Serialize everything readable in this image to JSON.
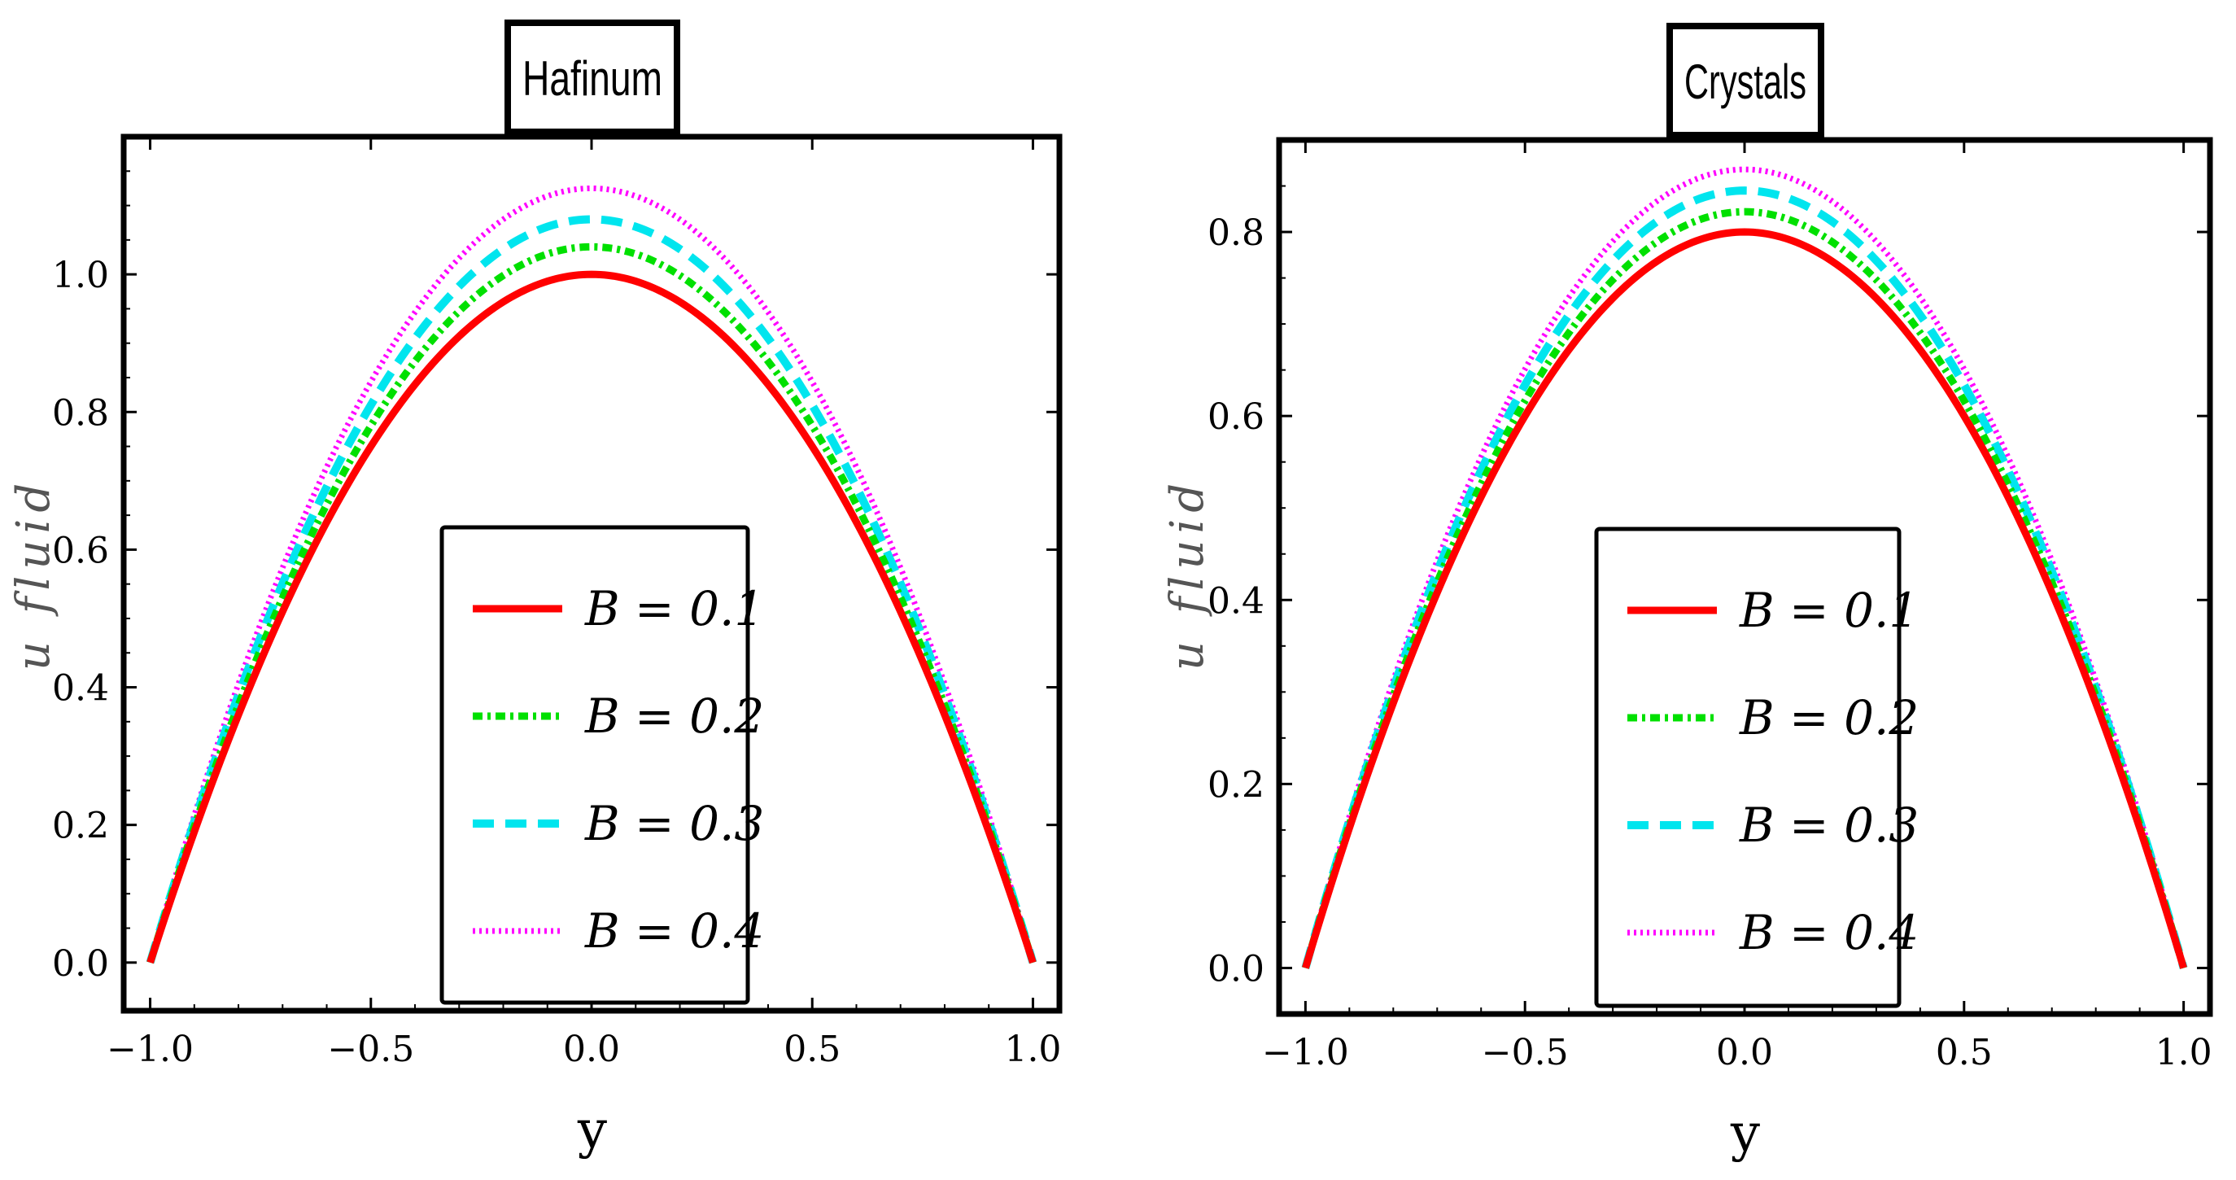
{
  "chart_data": [
    {
      "type": "line",
      "title": "Hafinum",
      "xlabel": "y",
      "ylabel": "u fluid",
      "xlim": [
        -1.06,
        1.06
      ],
      "ylim": [
        -0.07,
        1.2
      ],
      "xticks": [
        "−1.0",
        "−0.5",
        "0.0",
        "0.5",
        "1.0"
      ],
      "xtick_values": [
        -1.0,
        -0.5,
        0.0,
        0.5,
        1.0
      ],
      "yticks": [
        "0.0",
        "0.2",
        "0.4",
        "0.6",
        "0.8",
        "1.0"
      ],
      "ytick_values": [
        0.0,
        0.2,
        0.4,
        0.6,
        0.8,
        1.0
      ],
      "function": "u = peak * (1 - y^2)",
      "series": [
        {
          "name": "B = 0.1",
          "peak": 1.0,
          "color": "#ff0000",
          "style": "solid"
        },
        {
          "name": "B = 0.2",
          "peak": 1.04,
          "color": "#00e000",
          "style": "dashdot"
        },
        {
          "name": "B = 0.3",
          "peak": 1.08,
          "color": "#00e5ee",
          "style": "dashed"
        },
        {
          "name": "B = 0.4",
          "peak": 1.125,
          "color": "#ff00ff",
          "style": "dotted"
        }
      ]
    },
    {
      "type": "line",
      "title": "Crystals",
      "xlabel": "y",
      "ylabel": "u fluid",
      "xlim": [
        -1.06,
        1.06
      ],
      "ylim": [
        -0.05,
        0.9
      ],
      "xticks": [
        "−1.0",
        "−0.5",
        "0.0",
        "0.5",
        "1.0"
      ],
      "xtick_values": [
        -1.0,
        -0.5,
        0.0,
        0.5,
        1.0
      ],
      "yticks": [
        "0.0",
        "0.2",
        "0.4",
        "0.6",
        "0.8"
      ],
      "ytick_values": [
        0.0,
        0.2,
        0.4,
        0.6,
        0.8
      ],
      "function": "u = peak * (1 - y^2)",
      "series": [
        {
          "name": "B = 0.1",
          "peak": 0.8,
          "color": "#ff0000",
          "style": "solid"
        },
        {
          "name": "B = 0.2",
          "peak": 0.822,
          "color": "#00e000",
          "style": "dashdot"
        },
        {
          "name": "B = 0.3",
          "peak": 0.845,
          "color": "#00e5ee",
          "style": "dashed"
        },
        {
          "name": "B = 0.4",
          "peak": 0.868,
          "color": "#ff00ff",
          "style": "dotted"
        }
      ]
    }
  ]
}
